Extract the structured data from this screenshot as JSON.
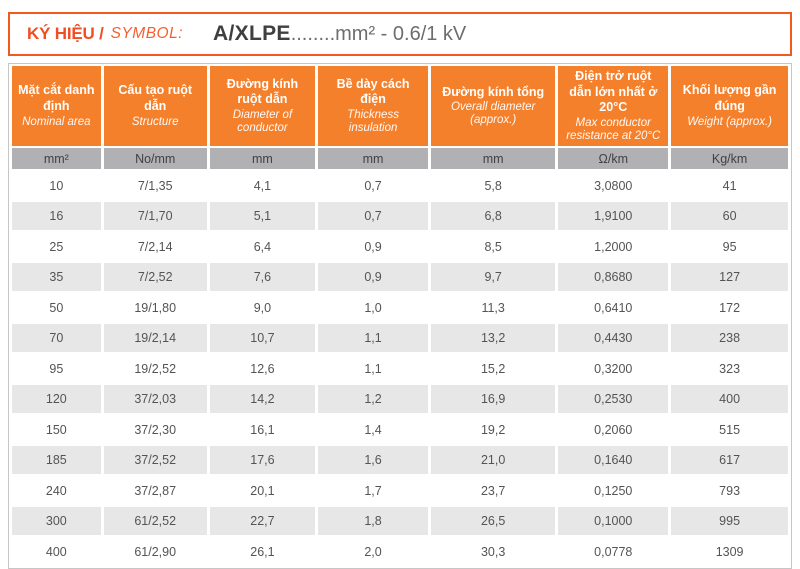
{
  "title": {
    "label_vi": "KÝ HIỆU /",
    "label_en": "SYMBOL:",
    "code": "A/XLPE",
    "dots": "........",
    "suffix": "mm² - 0.6/1 kV"
  },
  "colors": {
    "accent_orange": "#f5802c",
    "title_orange": "#f04e23",
    "units_row_gray": "#b1b1b3",
    "zebra_gray": "#e7e7e8",
    "body_text": "#545456"
  },
  "table": {
    "columns": [
      {
        "vi": "Mặt cắt danh định",
        "en": "Nominal area",
        "unit": "mm²"
      },
      {
        "vi": "Cấu tạo ruột dẫn",
        "en": "Structure",
        "unit": "No/mm"
      },
      {
        "vi": "Đường kính ruột dẫn",
        "en": "Diameter of conductor",
        "unit": "mm"
      },
      {
        "vi": "Bề dày cách điện",
        "en": "Thickness insulation",
        "unit": "mm"
      },
      {
        "vi": "Đường kính tổng",
        "en": "Overall diameter (approx.)",
        "unit": "mm"
      },
      {
        "vi": "Điện trở ruột dẫn lớn nhất ở 20°C",
        "en": "Max conductor resistance at 20°C",
        "unit": "Ω/km"
      },
      {
        "vi": "Khối lượng gần đúng",
        "en": "Weight (approx.)",
        "unit": "Kg/km"
      }
    ],
    "rows": [
      [
        "10",
        "7/1,35",
        "4,1",
        "0,7",
        "5,8",
        "3,0800",
        "41"
      ],
      [
        "16",
        "7/1,70",
        "5,1",
        "0,7",
        "6,8",
        "1,9100",
        "60"
      ],
      [
        "25",
        "7/2,14",
        "6,4",
        "0,9",
        "8,5",
        "1,2000",
        "95"
      ],
      [
        "35",
        "7/2,52",
        "7,6",
        "0,9",
        "9,7",
        "0,8680",
        "127"
      ],
      [
        "50",
        "19/1,80",
        "9,0",
        "1,0",
        "11,3",
        "0,6410",
        "172"
      ],
      [
        "70",
        "19/2,14",
        "10,7",
        "1,1",
        "13,2",
        "0,4430",
        "238"
      ],
      [
        "95",
        "19/2,52",
        "12,6",
        "1,1",
        "15,2",
        "0,3200",
        "323"
      ],
      [
        "120",
        "37/2,03",
        "14,2",
        "1,2",
        "16,9",
        "0,2530",
        "400"
      ],
      [
        "150",
        "37/2,30",
        "16,1",
        "1,4",
        "19,2",
        "0,2060",
        "515"
      ],
      [
        "185",
        "37/2,52",
        "17,6",
        "1,6",
        "21,0",
        "0,1640",
        "617"
      ],
      [
        "240",
        "37/2,87",
        "20,1",
        "1,7",
        "23,7",
        "0,1250",
        "793"
      ],
      [
        "300",
        "61/2,52",
        "22,7",
        "1,8",
        "26,5",
        "0,1000",
        "995"
      ],
      [
        "400",
        "61/2,90",
        "26,1",
        "2,0",
        "30,3",
        "0,0778",
        "1309"
      ]
    ]
  }
}
